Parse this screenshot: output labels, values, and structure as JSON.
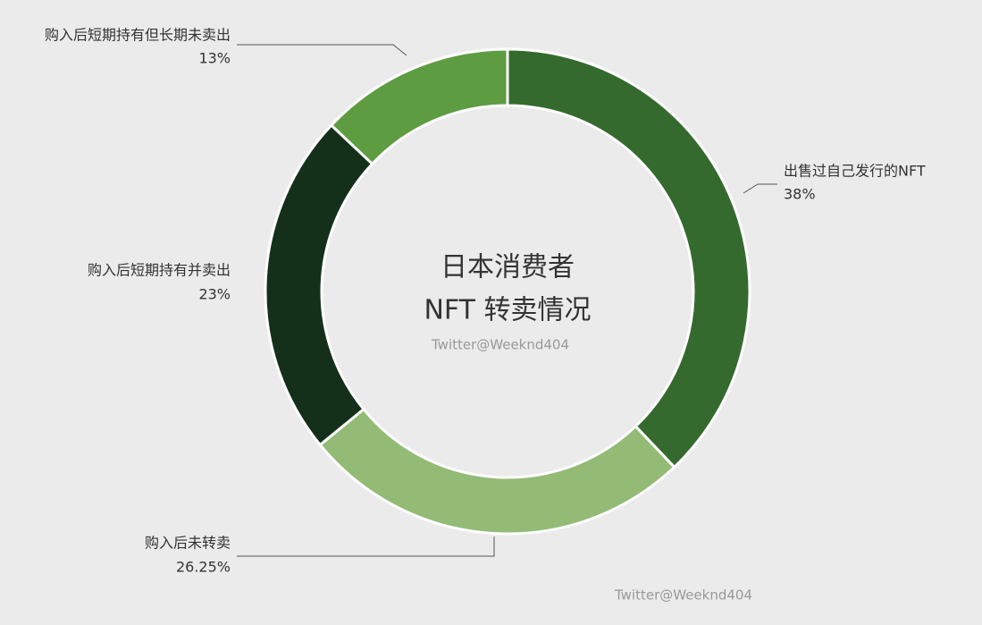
{
  "chart_data": {
    "type": "donut",
    "title": [
      "日本消费者",
      "NFT 转卖情况"
    ],
    "annotations": [
      "Twitter@Weeknd404",
      "Twitter@Weeknd404"
    ],
    "categories": [
      "出售过自己发行的NFT",
      "购入后未转卖",
      "购入后短期持有并卖出",
      "购入后短期持有但长期未卖出"
    ],
    "values": [
      38,
      26.25,
      23,
      13
    ],
    "value_labels": [
      "38%",
      "26.25%",
      "23%",
      "13%"
    ],
    "colors": [
      "#356a2e",
      "#93bb76",
      "#14301a",
      "#5e9c42"
    ]
  }
}
